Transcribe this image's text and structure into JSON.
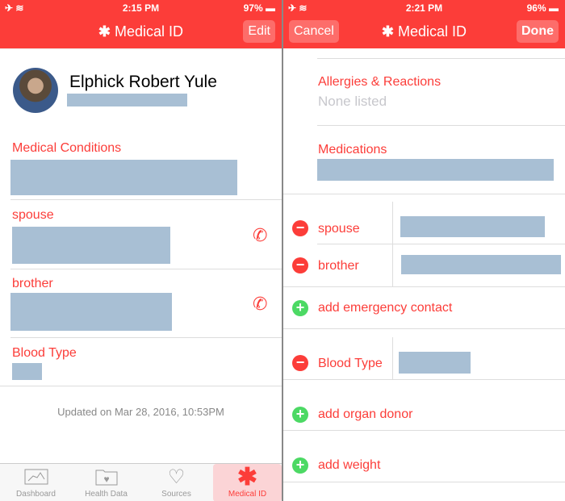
{
  "colors": {
    "accent": "#fc3d39",
    "add": "#4cd964",
    "redacted": "#a8bfd4"
  },
  "left": {
    "status": {
      "time": "2:15 PM",
      "battery": "97%"
    },
    "nav": {
      "title": "Medical ID",
      "edit": "Edit"
    },
    "profile": {
      "name": "Elphick Robert Yule"
    },
    "sections": {
      "conditions": "Medical Conditions",
      "spouse": "spouse",
      "brother": "brother",
      "blood": "Blood Type"
    },
    "updated": "Updated on Mar 28, 2016, 10:53PM",
    "tabs": [
      {
        "label": "Dashboard",
        "icon": "chart-icon"
      },
      {
        "label": "Health Data",
        "icon": "folder-heart-icon"
      },
      {
        "label": "Sources",
        "icon": "heart-download-icon"
      },
      {
        "label": "Medical ID",
        "icon": "asterisk-icon",
        "selected": true
      }
    ]
  },
  "right": {
    "status": {
      "time": "2:21 PM",
      "battery": "96%"
    },
    "nav": {
      "title": "Medical ID",
      "cancel": "Cancel",
      "done": "Done"
    },
    "allergies": {
      "label": "Allergies & Reactions",
      "placeholder": "None listed"
    },
    "medications": "Medications",
    "spouse": "spouse",
    "brother": "brother",
    "add_contact": "add emergency contact",
    "blood": "Blood Type",
    "add_donor": "add organ donor",
    "add_weight": "add weight"
  }
}
